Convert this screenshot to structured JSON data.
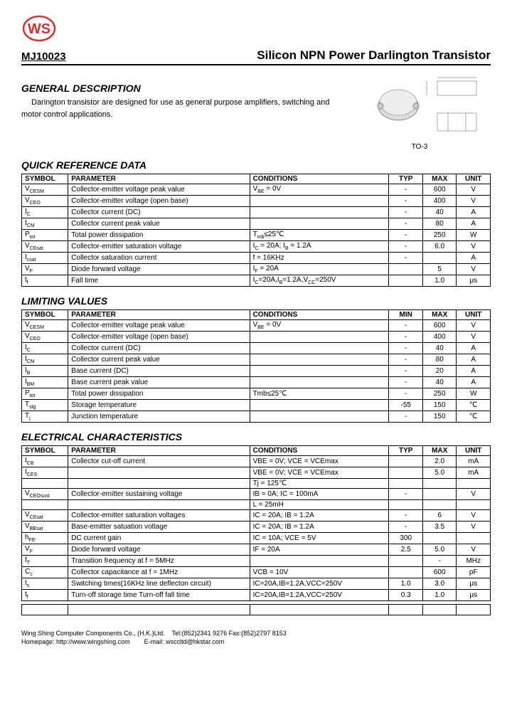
{
  "part_number": "MJ10023",
  "main_title": "Silicon NPN Power Darlington Transistor",
  "sections": {
    "general": {
      "title": "GENERAL DESCRIPTION",
      "text": "Darington transistor are designed for use as general purpose amplifiers, switching and motor control applications."
    },
    "package_label": "TO-3",
    "quick_ref": {
      "title": "QUICK REFERENCE DATA"
    },
    "limiting": {
      "title": "LIMITING VALUES"
    },
    "electrical": {
      "title": "ELECTRICAL CHARACTERISTICS"
    }
  },
  "headers": {
    "symbol": "SYMBOL",
    "parameter": "PARAMETER",
    "conditions": "CONDITIONS",
    "typ": "TYP",
    "min": "MIN",
    "max": "MAX",
    "unit": "UNIT"
  },
  "quick_ref_rows": [
    {
      "sym": "V",
      "sub": "CESM",
      "param": "Collector-emitter voltage peak value",
      "cond": "V",
      "condsub": "BE",
      "cond2": " = 0V",
      "typ": "-",
      "max": "600",
      "unit": "V"
    },
    {
      "sym": "V",
      "sub": "CEO",
      "param": "Collector-emitter voltage (open base)",
      "cond": "",
      "condsub": "",
      "cond2": "",
      "typ": "-",
      "max": "400",
      "unit": "V"
    },
    {
      "sym": "I",
      "sub": "C",
      "param": "Collector current (DC)",
      "cond": "",
      "condsub": "",
      "cond2": "",
      "typ": "-",
      "max": "40",
      "unit": "A"
    },
    {
      "sym": "I",
      "sub": "CM",
      "param": "Collector current peak value",
      "cond": "",
      "condsub": "",
      "cond2": "",
      "typ": "-",
      "max": "80",
      "unit": "A"
    },
    {
      "sym": "P",
      "sub": "tot",
      "param": "Total power dissipation",
      "cond": "T",
      "condsub": "mb",
      "cond2": "≤25℃",
      "typ": "-",
      "max": "250",
      "unit": "W"
    },
    {
      "sym": "V",
      "sub": "CEsat",
      "param": "Collector-emitter saturation voltage",
      "cond": "I",
      "condsub": "C",
      "cond2": " = 20A; I",
      "condsub2": "B",
      "cond3": " = 1.2A",
      "typ": "-",
      "max": "6.0",
      "unit": "V"
    },
    {
      "sym": "I",
      "sub": "csat",
      "param": "Collector saturation current",
      "cond": "f = 16KHz",
      "condsub": "",
      "cond2": "",
      "typ": "-",
      "max": "",
      "unit": "A"
    },
    {
      "sym": "V",
      "sub": "F",
      "param": "Diode forward voltage",
      "cond": "I",
      "condsub": "F",
      "cond2": " = 20A",
      "typ": "",
      "max": "5",
      "unit": "V"
    },
    {
      "sym": "t",
      "sub": "f",
      "param": "Fall time",
      "cond": "I",
      "condsub": "C",
      "cond2": "=20A,I",
      "condsub2": "B",
      "cond3": "=1.2A,V",
      "condsub3": "CC",
      "cond4": "=250V",
      "typ": "",
      "max": "1.0",
      "unit": "μs"
    }
  ],
  "limiting_rows": [
    {
      "sym": "V",
      "sub": "CESM",
      "param": "Collector-emitter voltage peak value",
      "cond": "V",
      "condsub": "BE",
      "cond2": " = 0V",
      "min": "-",
      "max": "600",
      "unit": "V"
    },
    {
      "sym": "V",
      "sub": "CEO",
      "param": "Collector-emitter voltage (open base)",
      "cond": "",
      "condsub": "",
      "cond2": "",
      "min": "-",
      "max": "400",
      "unit": "V"
    },
    {
      "sym": "I",
      "sub": "C",
      "param": "Collector current (DC)",
      "cond": "",
      "condsub": "",
      "cond2": "",
      "min": "-",
      "max": "40",
      "unit": "A"
    },
    {
      "sym": "I",
      "sub": "CM",
      "param": "Collector current peak value",
      "cond": "",
      "condsub": "",
      "cond2": "",
      "min": "-",
      "max": "80",
      "unit": "A"
    },
    {
      "sym": "I",
      "sub": "B",
      "param": "Base current (DC)",
      "cond": "",
      "condsub": "",
      "cond2": "",
      "min": "-",
      "max": "20",
      "unit": "A"
    },
    {
      "sym": "I",
      "sub": "BM",
      "param": "Base current peak value",
      "cond": "",
      "condsub": "",
      "cond2": "",
      "min": "-",
      "max": "40",
      "unit": "A"
    },
    {
      "sym": "P",
      "sub": "tot",
      "param": "Total power dissipation",
      "cond": "Tmb≤25℃",
      "condsub": "",
      "cond2": "",
      "min": "-",
      "max": "250",
      "unit": "W"
    },
    {
      "sym": "T",
      "sub": "stg",
      "param": "Storage temperature",
      "cond": "",
      "condsub": "",
      "cond2": "",
      "min": "-55",
      "max": "150",
      "unit": "℃"
    },
    {
      "sym": "T",
      "sub": "j",
      "param": "Junction temperature",
      "cond": "",
      "condsub": "",
      "cond2": "",
      "min": "-",
      "max": "150",
      "unit": "℃"
    }
  ],
  "electrical_rows": [
    {
      "sym": "I",
      "sub": "CB",
      "param": "Collector cut-off current",
      "cond": "VBE = 0V; VCE = VCEmax",
      "typ": "",
      "max": "2.0",
      "unit": "mA"
    },
    {
      "sym": "I",
      "sub": "CES",
      "param": "",
      "cond": "VBE = 0V; VCE = VCEmax",
      "typ": "",
      "max": "5.0",
      "unit": "mA"
    },
    {
      "sym": "",
      "sub": "",
      "param": "",
      "cond": "Tj = 125℃",
      "typ": "",
      "max": "",
      "unit": ""
    },
    {
      "sym": "V",
      "sub": "CEOsust",
      "param": "Collector-emitter sustaining voltage",
      "cond": "IB = 0A; IC = 100mA",
      "typ": "-",
      "max": "",
      "unit": "V"
    },
    {
      "sym": "",
      "sub": "",
      "param": "",
      "cond": "L = 25mH",
      "typ": "",
      "max": "",
      "unit": ""
    },
    {
      "sym": "V",
      "sub": "CEsat",
      "param": "Collector-emitter saturation voltages",
      "cond": "IC = 20A; IB = 1.2A",
      "typ": "-",
      "max": "6",
      "unit": "V"
    },
    {
      "sym": "V",
      "sub": "BEsat",
      "param": "Base-emitter satuation voltage",
      "cond": "IC = 20A; IB = 1.2A",
      "typ": "-",
      "max": "3.5",
      "unit": "V"
    },
    {
      "sym": "h",
      "sub": "FE",
      "param": "DC current gain",
      "cond": "IC = 10A; VCE = 5V",
      "typ": "300",
      "max": "",
      "unit": ""
    },
    {
      "sym": "V",
      "sub": "F",
      "param": "Diode forward voltage",
      "cond": "IF = 20A",
      "typ": "2.5",
      "max": "5.0",
      "unit": "V"
    },
    {
      "sym": "f",
      "sub": "T",
      "param": "Transition frequency at f = 5MHz",
      "cond": "",
      "typ": "",
      "max": "-",
      "unit": "MHz"
    },
    {
      "sym": "C",
      "sub": "c",
      "param": "Collector capacitance at f = 1MHz",
      "cond": "VCB = 10V",
      "typ": "",
      "max": "600",
      "unit": "pF"
    },
    {
      "sym": "t",
      "sub": "s",
      "param": "Switching times(16KHz line deflecton circuit)",
      "cond": "IC=20A,IB=1.2A,VCC=250V",
      "typ": "1.0",
      "max": "3.0",
      "unit": "μs"
    },
    {
      "sym": "t",
      "sub": "f",
      "param": "Turn-off storage time  Turn-off fall time",
      "cond": "IC=20A,IB=1.2A,VCC=250V",
      "typ": "0.3",
      "max": "1.0",
      "unit": "μs"
    }
  ],
  "footer": {
    "line1a": "Wing Shing Computer Components Co., (H.K.)Ltd.",
    "line1b": "Tel:(852)2341 9276     Fax:(852)2797 8153",
    "line2a": "Homepage:    http://www.wingshing.com",
    "line2b": "E-mail:    wsccltd@hkstar.com"
  },
  "colors": {
    "logo_red": "#d93030",
    "text": "#000000",
    "border": "#000000"
  }
}
